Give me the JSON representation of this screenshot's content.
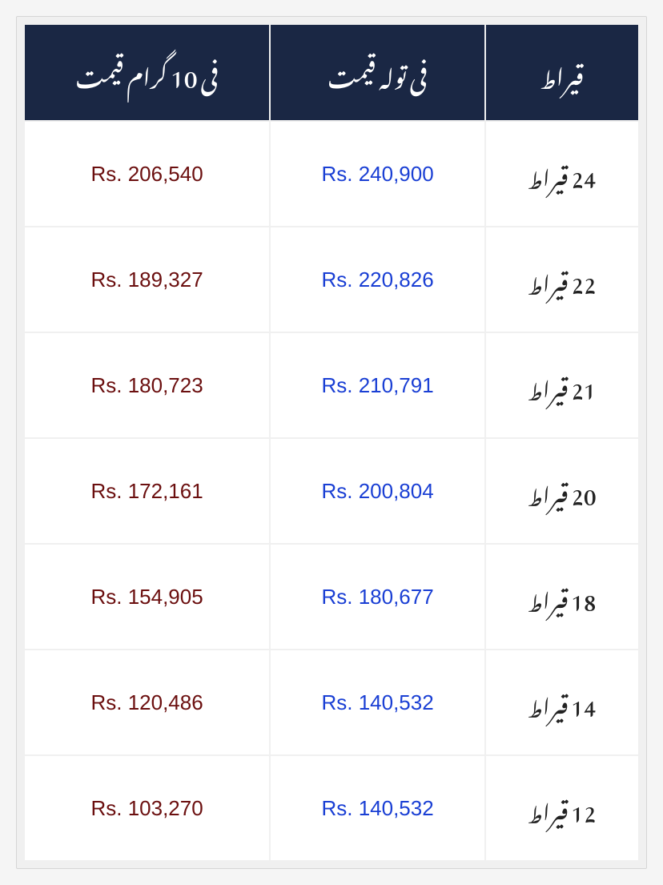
{
  "table": {
    "header": {
      "gram": "فی 10 گرام قیمت",
      "tola": "فی تولہ قیمت",
      "karat": "قیراط"
    },
    "rows": [
      {
        "gram": "Rs. 206,540",
        "tola": "Rs. 240,900",
        "karat": "24 قیراط"
      },
      {
        "gram": "Rs. 189,327",
        "tola": "Rs. 220,826",
        "karat": "22 قیراط"
      },
      {
        "gram": "Rs. 180,723",
        "tola": "Rs. 210,791",
        "karat": "21 قیراط"
      },
      {
        "gram": "Rs. 172,161",
        "tola": "Rs. 200,804",
        "karat": "20 قیراط"
      },
      {
        "gram": "Rs. 154,905",
        "tola": "Rs. 180,677",
        "karat": "18 قیراط"
      },
      {
        "gram": "Rs. 120,486",
        "tola": "Rs. 140,532",
        "karat": "14 قیراط"
      },
      {
        "gram": "Rs. 103,270",
        "tola": "Rs. 140,532",
        "karat": "12 قیراط"
      }
    ],
    "colors": {
      "header_bg": "#1a2744",
      "header_text": "#ffffff",
      "gram_text": "#6b0f0f",
      "tola_text": "#1a3fd4",
      "karat_text": "#222222",
      "cell_bg": "#ffffff",
      "border": "#f0f0f0",
      "container_bg": "#f0f0f0"
    },
    "typography": {
      "header_fontsize": 30,
      "cell_fontsize": 26,
      "karat_fontsize": 28
    },
    "layout": {
      "col_widths_pct": [
        40,
        35,
        25
      ],
      "cell_padding_v": 30,
      "header_padding_v": 22
    }
  }
}
